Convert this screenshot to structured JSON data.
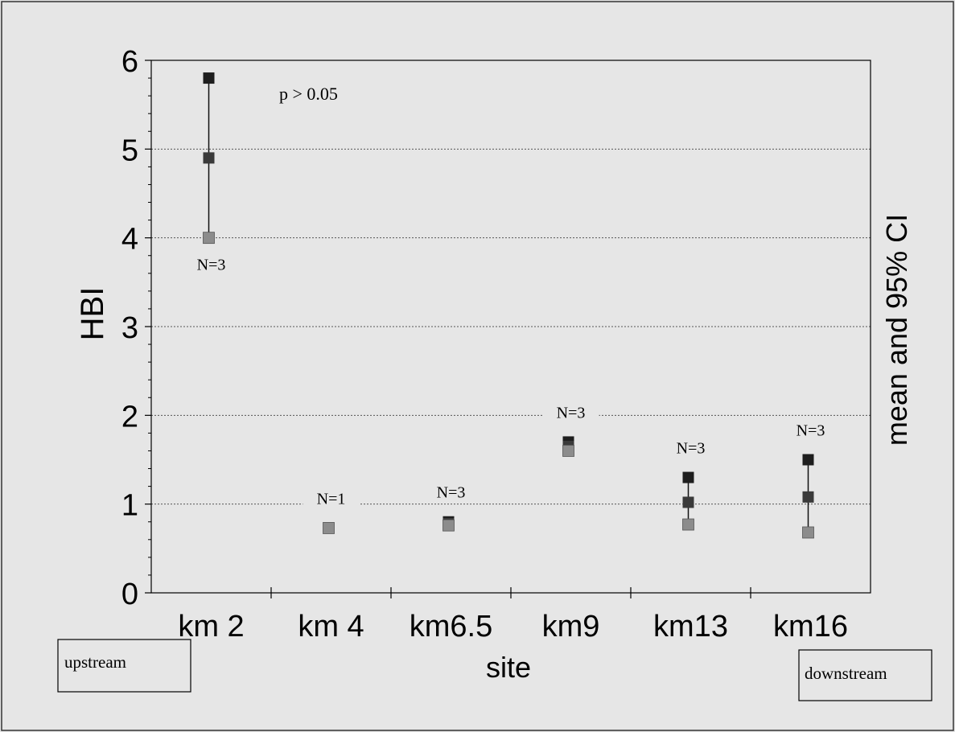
{
  "chart_data": {
    "type": "scatter",
    "title": "",
    "xlabel": "site",
    "ylabel": "HBI",
    "right_label": "mean and 95% CI",
    "categories": [
      "km 2",
      "km 4",
      "km6.5",
      "km9",
      "km13",
      "km16"
    ],
    "ylim": [
      0,
      6
    ],
    "yticks": [
      0,
      1,
      2,
      3,
      4,
      5,
      6
    ],
    "grid": true,
    "series": [
      {
        "values": [
          {
            "upper": 5.8,
            "mean": 4.9,
            "lower": 4.0
          },
          {
            "upper": 0.73,
            "mean": 0.73,
            "lower": 0.73
          },
          {
            "upper": 0.8,
            "mean": 0.78,
            "lower": 0.76
          },
          {
            "upper": 1.7,
            "mean": 1.65,
            "lower": 1.6
          },
          {
            "upper": 1.3,
            "mean": 1.02,
            "lower": 0.77
          },
          {
            "upper": 1.5,
            "mean": 1.08,
            "lower": 0.68
          }
        ]
      }
    ],
    "annotations": {
      "p_value": "p > 0.05",
      "n_labels": [
        "N=3",
        "N=1",
        "N=3",
        "N=3",
        "N=3",
        "N=3"
      ],
      "upstream": "upstream",
      "downstream": "downstream"
    },
    "colors": {
      "background": "#e6e6e6",
      "marker_dark": "#1e1e1e",
      "marker_mid": "#3a3a3a",
      "marker_light": "#8c8c8c",
      "axis": "#000000",
      "grid": "#555555"
    }
  }
}
